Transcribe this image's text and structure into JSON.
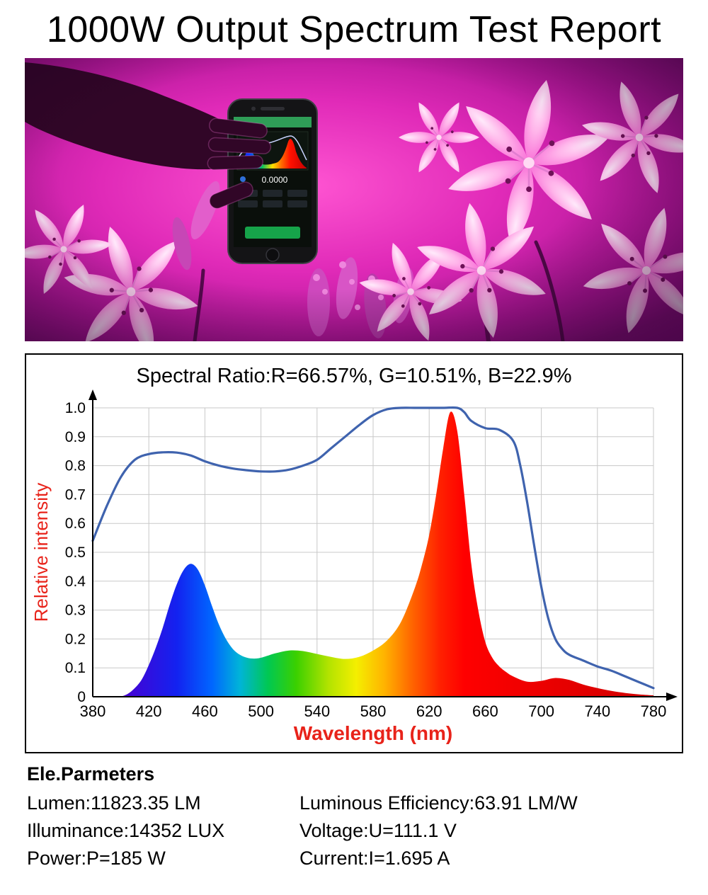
{
  "title": "1000W Output Spectrum Test Report",
  "photo": {
    "description": "hand holding smartphone spectrum analyzer over magenta grow-light lilies",
    "phone_value": "0.0000"
  },
  "chart_data": {
    "type": "area",
    "title": "Spectral Ratio:R=66.57%, G=10.51%, B=22.9%",
    "xlabel": "Wavelength (nm)",
    "ylabel": "Relative intensity",
    "xlim": [
      380,
      780
    ],
    "ylim": [
      0,
      1.0
    ],
    "x_ticks": [
      380,
      420,
      460,
      500,
      540,
      580,
      620,
      660,
      700,
      740,
      780
    ],
    "y_ticks": [
      0,
      0.1,
      0.2,
      0.3,
      0.4,
      0.5,
      0.6,
      0.7,
      0.8,
      0.9,
      1.0
    ],
    "grid": true,
    "legend": "none",
    "series": [
      {
        "name": "envelope-line",
        "type": "line",
        "color": "#3f63ae",
        "x": [
          380,
          390,
          400,
          410,
          420,
          430,
          440,
          450,
          460,
          470,
          480,
          490,
          500,
          510,
          520,
          530,
          540,
          550,
          560,
          570,
          580,
          590,
          600,
          610,
          620,
          630,
          640,
          645,
          650,
          660,
          670,
          680,
          685,
          690,
          695,
          700,
          705,
          710,
          715,
          720,
          730,
          740,
          750,
          760,
          770,
          780
        ],
        "y": [
          0.54,
          0.66,
          0.76,
          0.82,
          0.84,
          0.846,
          0.845,
          0.835,
          0.815,
          0.8,
          0.79,
          0.784,
          0.78,
          0.78,
          0.786,
          0.8,
          0.82,
          0.86,
          0.9,
          0.94,
          0.975,
          0.995,
          1.0,
          1.0,
          1.0,
          1.0,
          1.0,
          0.985,
          0.955,
          0.93,
          0.924,
          0.885,
          0.8,
          0.67,
          0.52,
          0.38,
          0.27,
          0.2,
          0.165,
          0.145,
          0.125,
          0.105,
          0.09,
          0.07,
          0.05,
          0.03
        ]
      },
      {
        "name": "led-spectrum",
        "type": "area",
        "fill": "wavelength-gradient",
        "x": [
          400,
          405,
          410,
          415,
          420,
          425,
          430,
          435,
          440,
          445,
          450,
          455,
          460,
          465,
          470,
          475,
          480,
          485,
          490,
          495,
          500,
          510,
          520,
          530,
          540,
          550,
          560,
          570,
          580,
          590,
          600,
          610,
          615,
          620,
          625,
          630,
          635,
          640,
          645,
          650,
          655,
          660,
          665,
          670,
          675,
          680,
          690,
          700,
          710,
          720,
          730,
          740,
          750,
          760,
          770,
          780
        ],
        "y": [
          0,
          0.01,
          0.03,
          0.06,
          0.11,
          0.17,
          0.24,
          0.32,
          0.39,
          0.44,
          0.46,
          0.44,
          0.385,
          0.315,
          0.25,
          0.2,
          0.165,
          0.145,
          0.135,
          0.132,
          0.135,
          0.15,
          0.16,
          0.158,
          0.148,
          0.138,
          0.131,
          0.138,
          0.16,
          0.195,
          0.26,
          0.38,
          0.46,
          0.56,
          0.7,
          0.86,
          0.985,
          0.92,
          0.7,
          0.46,
          0.3,
          0.19,
          0.135,
          0.105,
          0.085,
          0.07,
          0.052,
          0.055,
          0.065,
          0.058,
          0.042,
          0.03,
          0.02,
          0.013,
          0.008,
          0.005
        ]
      }
    ],
    "wavelength_gradient": [
      {
        "nm": 400,
        "color": "#4a00d0"
      },
      {
        "nm": 440,
        "color": "#1322f0"
      },
      {
        "nm": 465,
        "color": "#0066ff"
      },
      {
        "nm": 485,
        "color": "#00b4d8"
      },
      {
        "nm": 505,
        "color": "#00c853"
      },
      {
        "nm": 525,
        "color": "#3ad000"
      },
      {
        "nm": 548,
        "color": "#b2e300"
      },
      {
        "nm": 568,
        "color": "#f4ef00"
      },
      {
        "nm": 588,
        "color": "#ffb300"
      },
      {
        "nm": 608,
        "color": "#ff6400"
      },
      {
        "nm": 628,
        "color": "#ff2000"
      },
      {
        "nm": 645,
        "color": "#ff0000"
      },
      {
        "nm": 780,
        "color": "#d00000"
      }
    ],
    "colors": {
      "axis": "#000000",
      "grid": "#c8c8c8",
      "axis_label_red": "#e8231a"
    }
  },
  "parameters": {
    "heading": "Ele.Parmeters",
    "rows": [
      {
        "left": "Lumen:11823.35 LM",
        "right": "Luminous Efficiency:63.91 LM/W"
      },
      {
        "left": "Illuminance:14352 LUX",
        "right": "Voltage:U=111.1 V"
      },
      {
        "left": "Power:P=185 W",
        "right": "Current:I=1.695 A"
      }
    ]
  }
}
